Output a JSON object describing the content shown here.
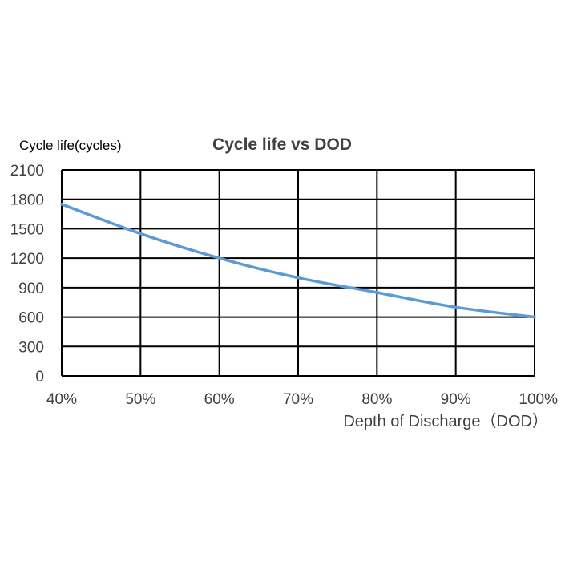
{
  "chart_data": {
    "type": "line",
    "title": "Cycle life vs DOD",
    "ylabel": "Cycle life(cycles)",
    "xlabel": "Depth of Discharge（DOD）",
    "x_tick_labels": [
      "40%",
      "50%",
      "60%",
      "70%",
      "80%",
      "90%",
      "100%"
    ],
    "y_tick_labels": [
      "0",
      "300",
      "600",
      "900",
      "1200",
      "1500",
      "1800",
      "2100"
    ],
    "xlim": [
      40,
      100
    ],
    "ylim": [
      0,
      2100
    ],
    "grid": true,
    "legend": "none",
    "series": [
      {
        "color": "#5b9bd5",
        "x": [
          40,
          50,
          60,
          70,
          80,
          90,
          100
        ],
        "y": [
          1750,
          1450,
          1200,
          1000,
          850,
          700,
          600
        ]
      }
    ]
  }
}
